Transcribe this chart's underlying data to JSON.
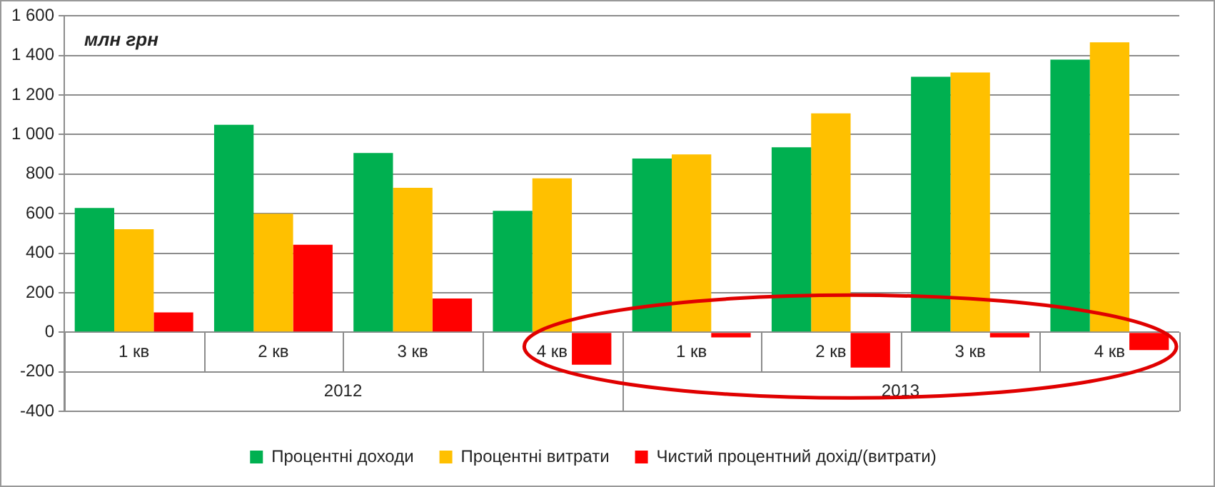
{
  "chart_data": {
    "type": "bar",
    "ylabel": "млн грн",
    "categories": [
      "1 кв",
      "2 кв",
      "3 кв",
      "4 кв",
      "1 кв",
      "2 кв",
      "3 кв",
      "4 кв"
    ],
    "series": [
      {
        "name": "Процентні доходи",
        "color": "#00b050",
        "values": [
          629,
          1050,
          907,
          614,
          879,
          936,
          1293,
          1379
        ]
      },
      {
        "name": "Процентні витрати",
        "color": "#ffc000",
        "values": [
          521,
          600,
          731,
          779,
          900,
          1107,
          1314,
          1467
        ]
      },
      {
        "name": "Чистий процентний дохід/(витрати)",
        "color": "#ff0000",
        "values": [
          100,
          443,
          171,
          -164,
          -26,
          -179,
          -26,
          -90
        ]
      }
    ],
    "ylim": [
      -400,
      1600
    ],
    "yticks": [
      {
        "value": -400,
        "label": "-400"
      },
      {
        "value": -200,
        "label": "-200"
      },
      {
        "value": 0,
        "label": "0"
      },
      {
        "value": 200,
        "label": "200"
      },
      {
        "value": 400,
        "label": "400"
      },
      {
        "value": 600,
        "label": "600"
      },
      {
        "value": 800,
        "label": "800"
      },
      {
        "value": 1000,
        "label": "1 000"
      },
      {
        "value": 1200,
        "label": "1 200"
      },
      {
        "value": 1400,
        "label": "1 400"
      },
      {
        "value": 1600,
        "label": "1 600"
      }
    ],
    "annotations": [
      "2012",
      "2013"
    ],
    "grid": "y",
    "legend": "bottom"
  }
}
